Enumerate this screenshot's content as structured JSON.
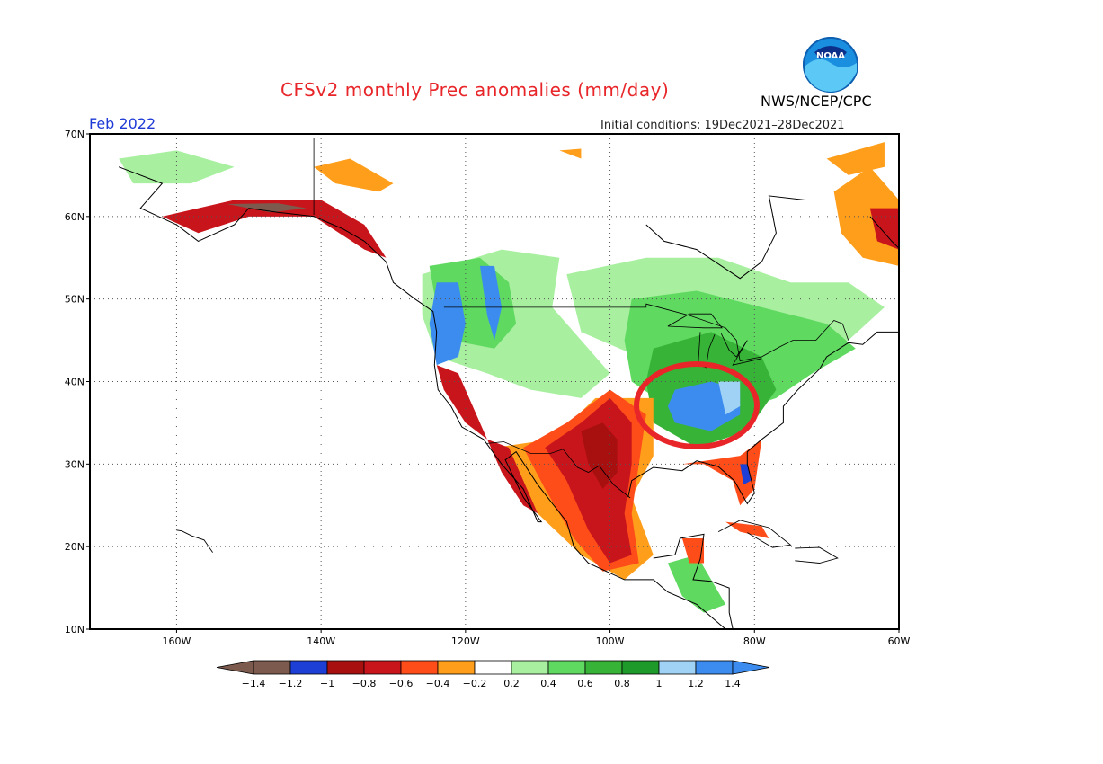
{
  "header": {
    "title": "CFSv2 monthly Prec anomalies (mm/day)",
    "month": "Feb 2022",
    "initial_conditions": "Initial conditions: 19Dec2021–28Dec2021",
    "agency": "NWS/NCEP/CPC",
    "logo_text": "NOAA"
  },
  "map": {
    "lat_labels": [
      "70N",
      "60N",
      "50N",
      "40N",
      "30N",
      "20N",
      "10N"
    ],
    "lon_labels": [
      "160W",
      "140W",
      "120W",
      "100W",
      "80W",
      "60W"
    ],
    "extent": {
      "lon": [
        -172,
        -60
      ],
      "lat": [
        10,
        70
      ]
    },
    "grid": true,
    "annotation": "red circle around Ohio/Tennessee Valley"
  },
  "legend": {
    "labels": [
      "−1.4",
      "−1.2",
      "−1",
      "−0.8",
      "−0.6",
      "−0.4",
      "−0.2",
      "0.2",
      "0.4",
      "0.6",
      "0.8",
      "1",
      "1.2",
      "1.4"
    ],
    "colors": [
      "#7d5a4e",
      "#1e3fd6",
      "#a80f0f",
      "#c8151b",
      "#ff4d1a",
      "#ff9e1a",
      "#ffffff",
      "#a8f0a0",
      "#5fd960",
      "#37b437",
      "#1e9a2a",
      "#a0d2f5",
      "#3c8cf0",
      "#3c8cf0"
    ]
  },
  "colors": {
    "strong_dry": "#a80f0f",
    "dry": "#c8151b",
    "mod_dry": "#ff4d1a",
    "light_dry": "#ff9e1a",
    "light_wet": "#a8f0a0",
    "wet": "#5fd960",
    "mod_wet": "#37b437",
    "very_wet": "#1e9a2a",
    "blue_light": "#a0d2f5",
    "blue": "#3c8cf0",
    "deep_blue": "#1e3fd6",
    "brown": "#7d5a4e",
    "annotation": "#e8262a"
  }
}
